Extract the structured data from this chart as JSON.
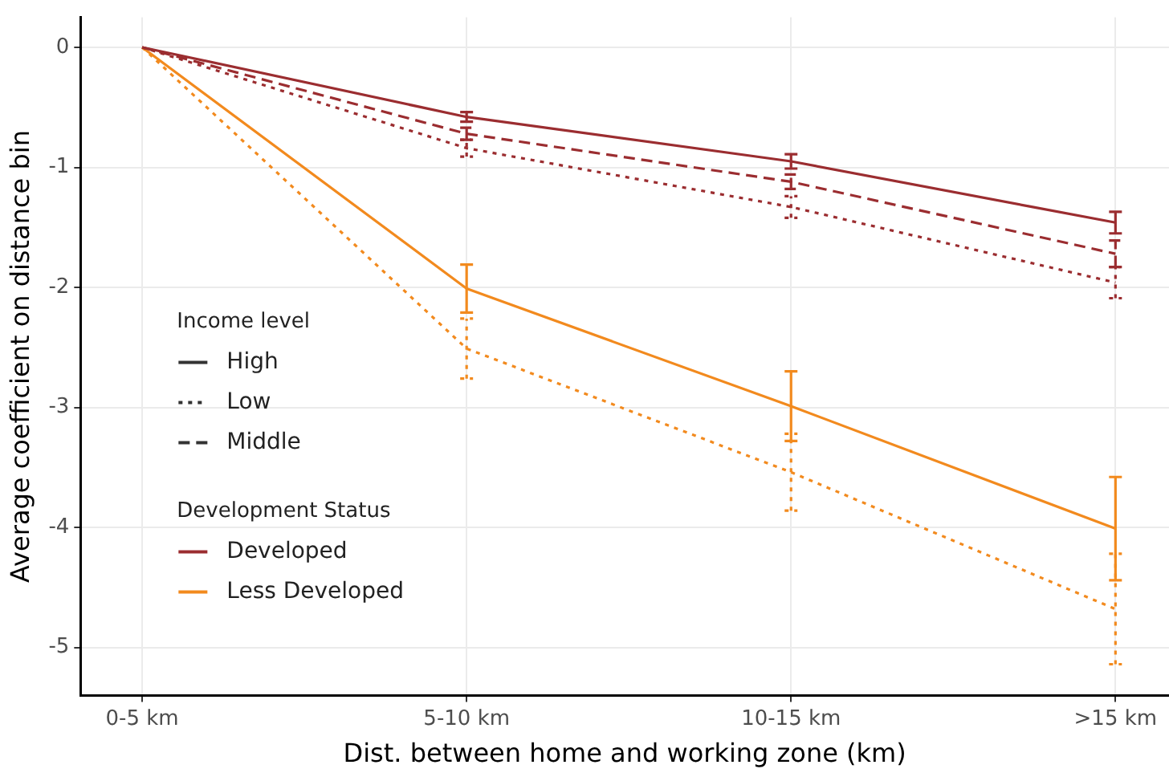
{
  "chart_data": {
    "type": "line",
    "xlabel": "Dist. between home and working zone (km)",
    "ylabel": "Average coefficient on distance bin",
    "categories": [
      "0-5 km",
      "5-10 km",
      "10-15 km",
      ">15 km"
    ],
    "ylim": [
      -5.4,
      0.25
    ],
    "yticks": [
      0,
      -1,
      -2,
      -3,
      -4,
      -5
    ],
    "grid": true,
    "legend": "left",
    "legend_title": "Income level",
    "annotations": [
      "Development Status"
    ],
    "series": [
      {
        "color": "#9b2d30",
        "line_style": "solid",
        "values": [
          0,
          -0.58,
          -0.95,
          -1.46
        ],
        "errors": [
          null,
          0.04,
          0.06,
          0.09
        ]
      },
      {
        "color": "#9b2d30",
        "line_style": "dotted",
        "values": [
          0,
          -0.84,
          -1.33,
          -1.96
        ],
        "errors": [
          null,
          0.07,
          0.09,
          0.13
        ]
      },
      {
        "color": "#9b2d30",
        "line_style": "dashed",
        "values": [
          0,
          -0.72,
          -1.12,
          -1.72
        ],
        "errors": [
          null,
          0.05,
          0.06,
          0.11
        ]
      },
      {
        "color": "#f28a1e",
        "line_style": "solid",
        "values": [
          0,
          -2.01,
          -2.99,
          -4.01
        ],
        "errors": [
          null,
          0.2,
          0.29,
          0.43
        ]
      },
      {
        "color": "#f28a1e",
        "line_style": "dotted",
        "values": [
          0,
          -2.51,
          -3.54,
          -4.68
        ],
        "errors": [
          null,
          0.25,
          0.32,
          0.46
        ]
      },
      {
        "name": "High",
        "color": "#333333",
        "line_style": "solid",
        "values": [
          null,
          null,
          null,
          null
        ]
      },
      {
        "name": "Low",
        "color": "#333333",
        "line_style": "dotted",
        "values": [
          null,
          null,
          null,
          null
        ]
      },
      {
        "name": "Middle",
        "color": "#333333",
        "line_style": "dashed",
        "values": [
          null,
          null,
          null,
          null
        ]
      },
      {
        "name": "Developed",
        "color": "#9b2d30",
        "values": [
          null,
          null,
          null,
          null
        ]
      },
      {
        "name": "Less Developed",
        "color": "#f28a1e",
        "values": [
          null,
          null,
          null,
          null
        ]
      }
    ]
  }
}
